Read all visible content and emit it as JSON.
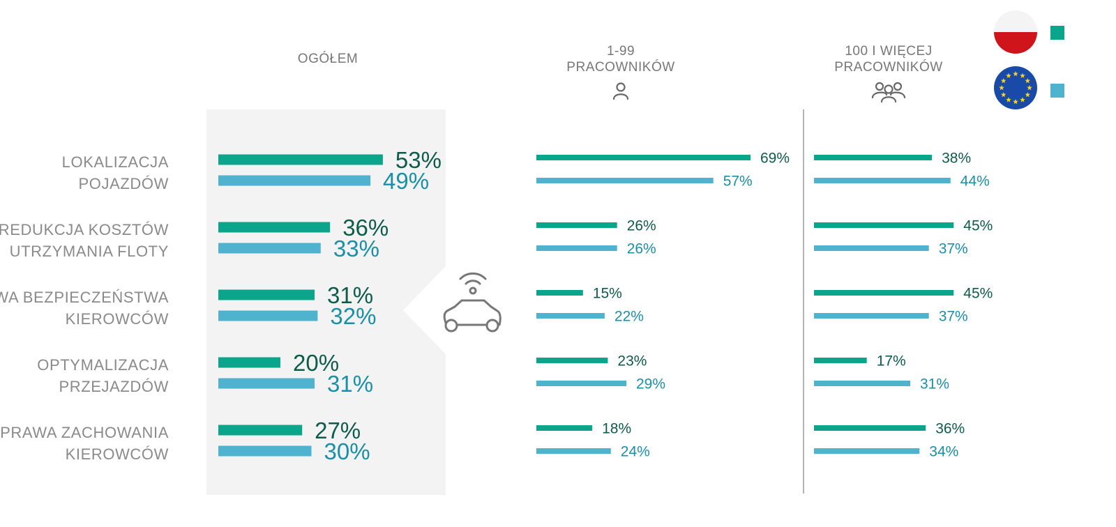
{
  "colors": {
    "pl": "#0aa58a",
    "eu": "#4fb3d0",
    "pl_text": "#0d5c4a",
    "eu_text": "#1a8fa8",
    "label": "#8a8a8a",
    "panel": "#f3f3f3",
    "divider": "#999999"
  },
  "headers": {
    "total": "OGÓŁEM",
    "small_line1": "1-99",
    "small_line2": "PRACOWNIKÓW",
    "large_line1": "100 I WIĘCEJ",
    "large_line2": "PRACOWNIKÓW"
  },
  "legend": [
    {
      "series": "pl",
      "icon": "poland-flag-icon"
    },
    {
      "series": "eu",
      "icon": "eu-flag-icon"
    }
  ],
  "icons": {
    "small": "person-icon",
    "large": "group-icon",
    "center": "connected-car-icon"
  },
  "chart_data": [
    {
      "type": "bar",
      "orientation": "horizontal",
      "title": "OGÓŁEM",
      "categories": [
        [
          "LOKALIZACJA",
          "POJAZDÓW"
        ],
        [
          "REDUKCJA KOSZTÓW",
          "UTRZYMANIA FLOTY"
        ],
        [
          "PRAWA BEZPIECZEŃSTWA",
          "KIEROWCÓW"
        ],
        [
          "OPTYMALIZACJA",
          "PRZEJAZDÓW"
        ],
        [
          "POPRAWA ZACHOWANIA",
          "KIEROWCÓW"
        ]
      ],
      "series": [
        {
          "key": "pl",
          "values": [
            53,
            36,
            31,
            20,
            27
          ],
          "labels": [
            "53%",
            "36%",
            "31%",
            "20%",
            "27%"
          ]
        },
        {
          "key": "eu",
          "values": [
            49,
            33,
            32,
            31,
            30
          ],
          "labels": [
            "49%",
            "33%",
            "32%",
            "31%",
            "30%"
          ]
        }
      ]
    },
    {
      "type": "bar",
      "orientation": "horizontal",
      "title": "1-99 PRACOWNIKÓW",
      "series": [
        {
          "key": "pl",
          "values": [
            69,
            26,
            15,
            23,
            18
          ],
          "labels": [
            "69%",
            "26%",
            "15%",
            "23%",
            "18%"
          ]
        },
        {
          "key": "eu",
          "values": [
            57,
            26,
            22,
            29,
            24
          ],
          "labels": [
            "57%",
            "26%",
            "22%",
            "29%",
            "24%"
          ]
        }
      ]
    },
    {
      "type": "bar",
      "orientation": "horizontal",
      "title": "100 I WIĘCEJ PRACOWNIKÓW",
      "series": [
        {
          "key": "pl",
          "values": [
            38,
            45,
            45,
            17,
            36
          ],
          "labels": [
            "38%",
            "45%",
            "45%",
            "17%",
            "36%"
          ]
        },
        {
          "key": "eu",
          "values": [
            44,
            37,
            37,
            31,
            34
          ],
          "labels": [
            "44%",
            "37%",
            "37%",
            "31%",
            "34%"
          ]
        }
      ]
    }
  ]
}
